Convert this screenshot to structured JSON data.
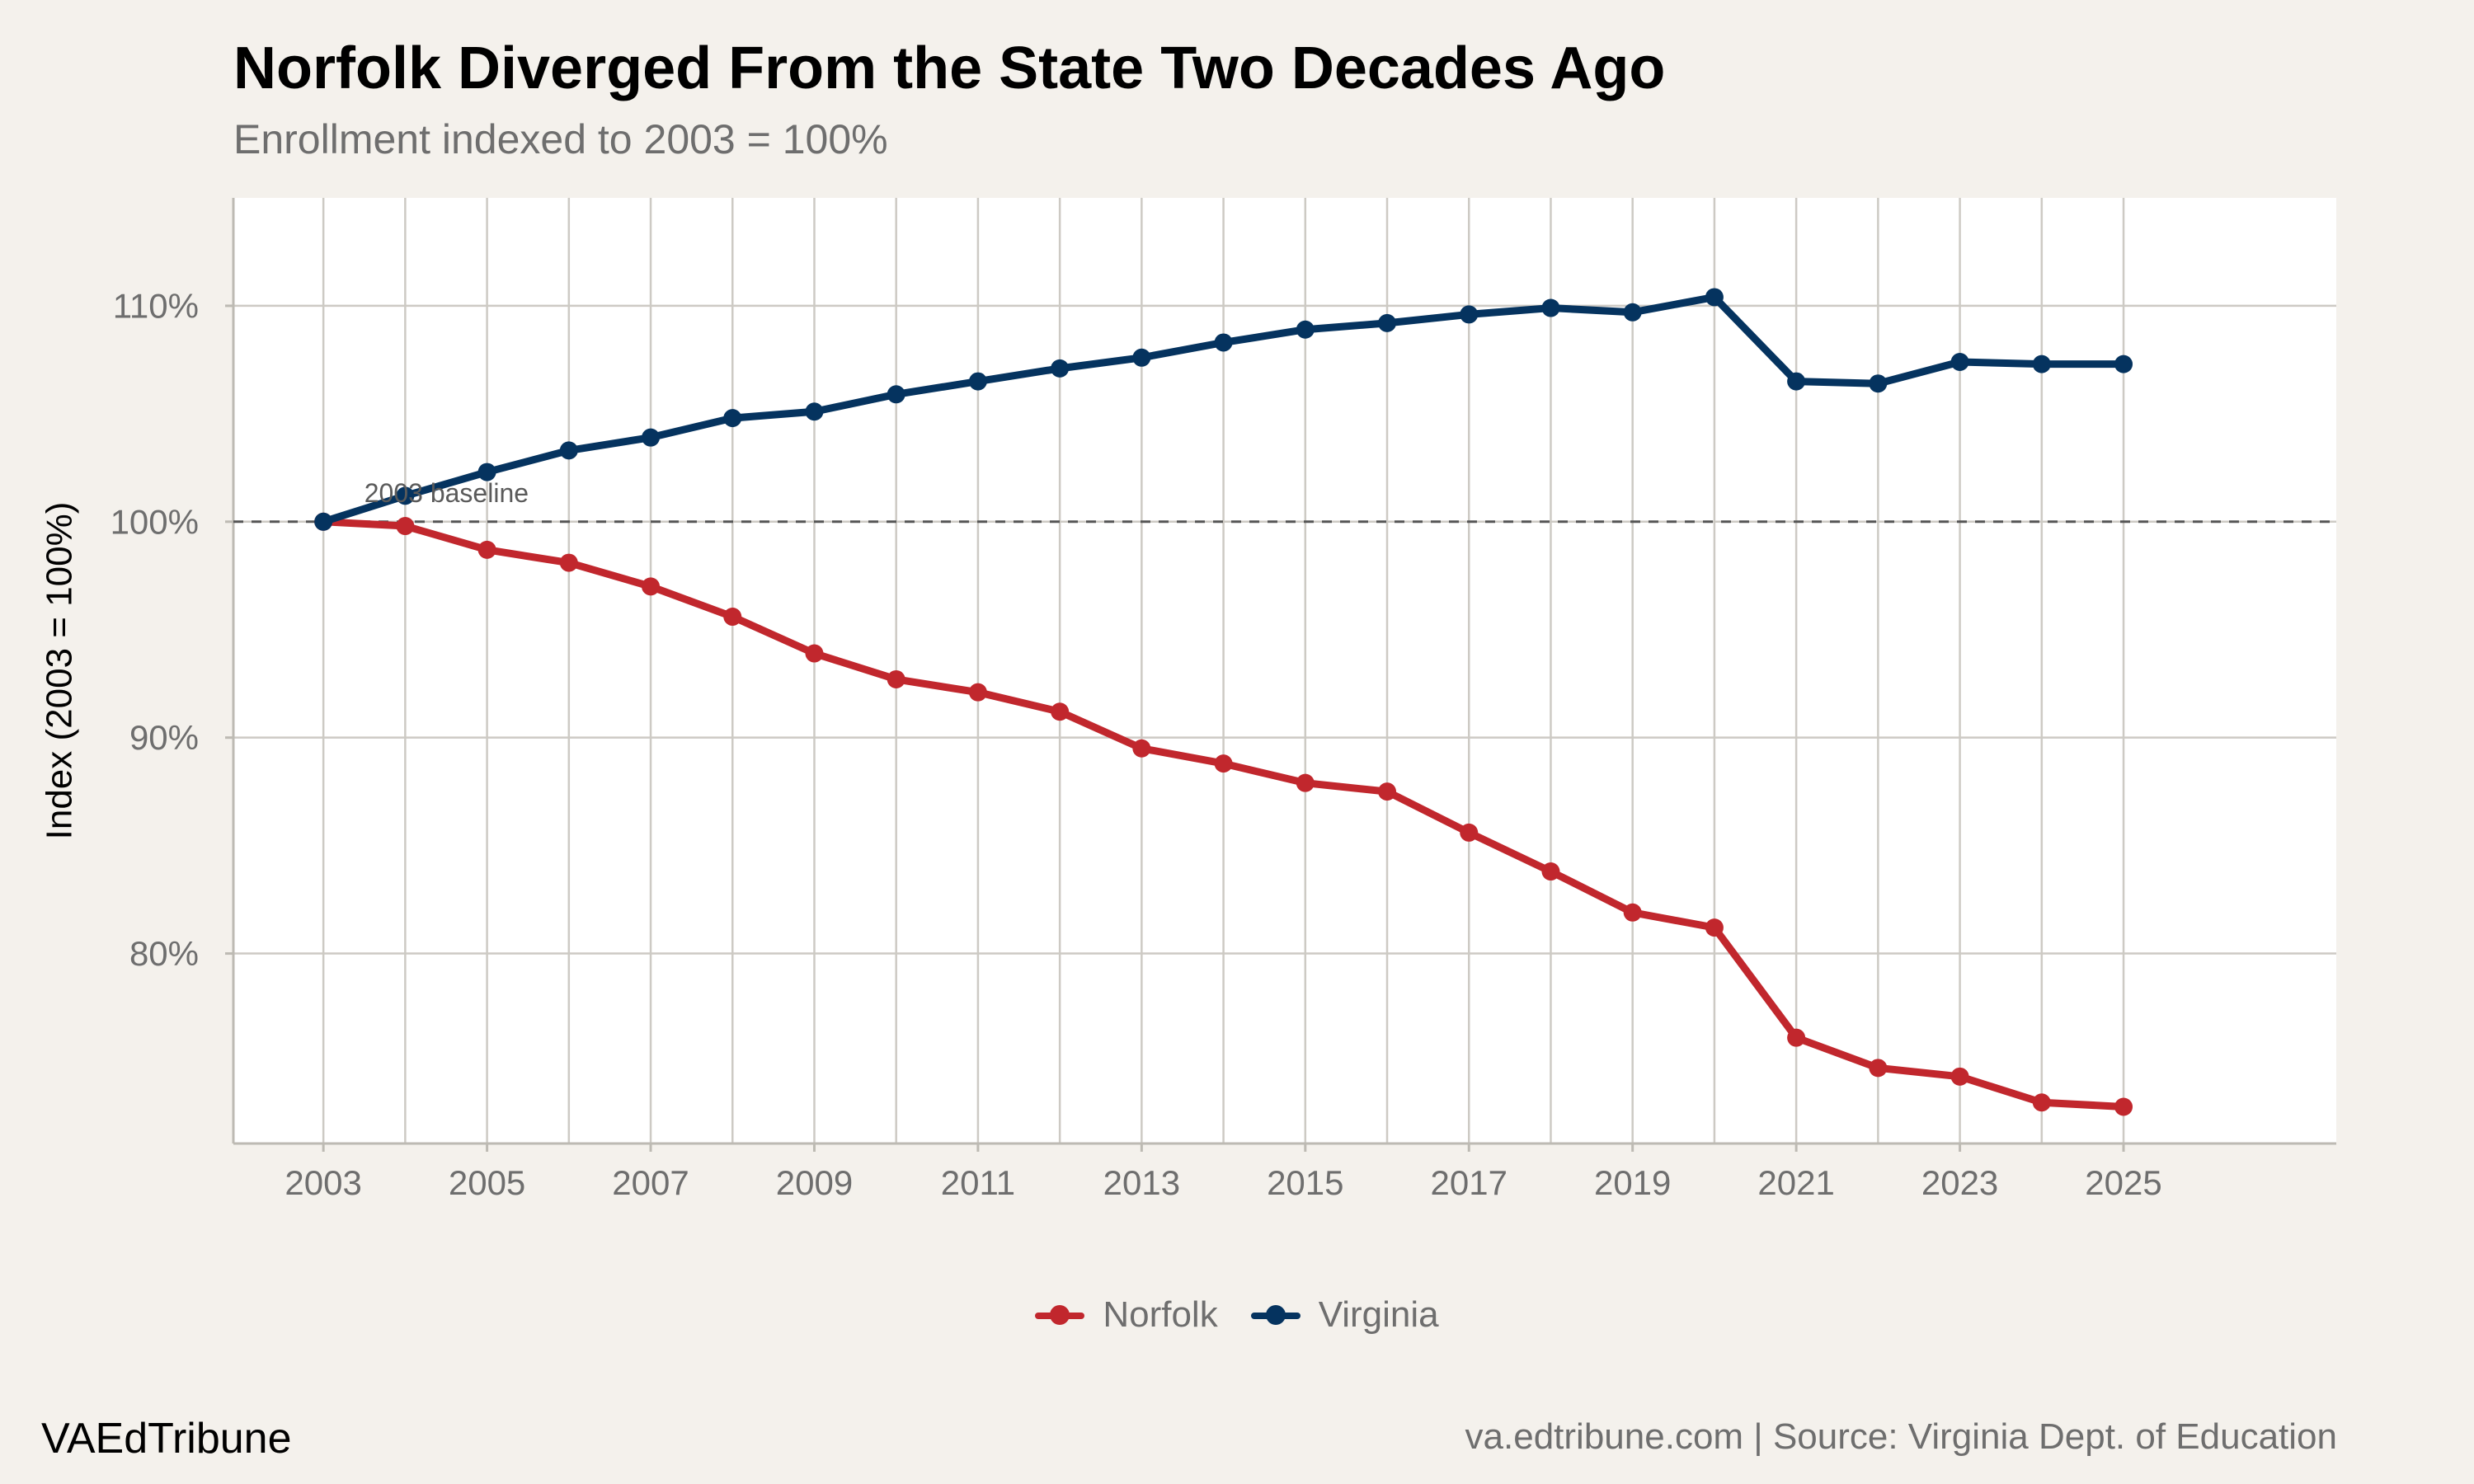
{
  "header": {
    "title": "Norfolk Diverged From the State Two Decades Ago",
    "subtitle": "Enrollment indexed to 2003 = 100%"
  },
  "footer": {
    "brand": "VAEdTribune",
    "source": "va.edtribune.com | Source: Virginia Dept. of Education"
  },
  "chart_data": {
    "type": "line",
    "title": "Norfolk Diverged From the State Two Decades Ago",
    "subtitle": "Enrollment indexed to 2003 = 100%",
    "xlabel": "",
    "ylabel": "Index (2003 = 100%)",
    "x": [
      2003,
      2004,
      2005,
      2006,
      2007,
      2008,
      2009,
      2010,
      2011,
      2012,
      2013,
      2014,
      2015,
      2016,
      2017,
      2018,
      2019,
      2020,
      2021,
      2022,
      2023,
      2024,
      2025
    ],
    "xlim": [
      2001.9,
      2027.6
    ],
    "ylim": [
      71.2,
      115
    ],
    "xticks": [
      2003,
      2005,
      2007,
      2009,
      2011,
      2013,
      2015,
      2017,
      2019,
      2021,
      2023,
      2025
    ],
    "yticks": [
      80,
      90,
      100,
      110
    ],
    "ytick_labels": [
      "80%",
      "90%",
      "100%",
      "110%"
    ],
    "grid": true,
    "legend_position": "bottom",
    "series": [
      {
        "name": "Norfolk",
        "color": "#c1272d",
        "values": [
          100,
          99.8,
          98.7,
          98.1,
          97.0,
          95.6,
          93.9,
          92.7,
          92.1,
          91.2,
          89.5,
          88.8,
          87.9,
          87.5,
          85.6,
          83.8,
          81.9,
          81.2,
          76.1,
          74.7,
          74.3,
          73.1,
          72.9
        ]
      },
      {
        "name": "Virginia",
        "color": "#05335f",
        "values": [
          100,
          101.2,
          102.3,
          103.3,
          103.9,
          104.8,
          105.1,
          105.9,
          106.5,
          107.1,
          107.6,
          108.3,
          108.9,
          109.2,
          109.6,
          109.9,
          109.7,
          110.4,
          106.5,
          106.4,
          107.4,
          107.3,
          107.3
        ]
      }
    ],
    "reference_line": {
      "y": 100,
      "style": "dashed",
      "label": "2003 baseline",
      "label_x": 2003.5
    }
  }
}
